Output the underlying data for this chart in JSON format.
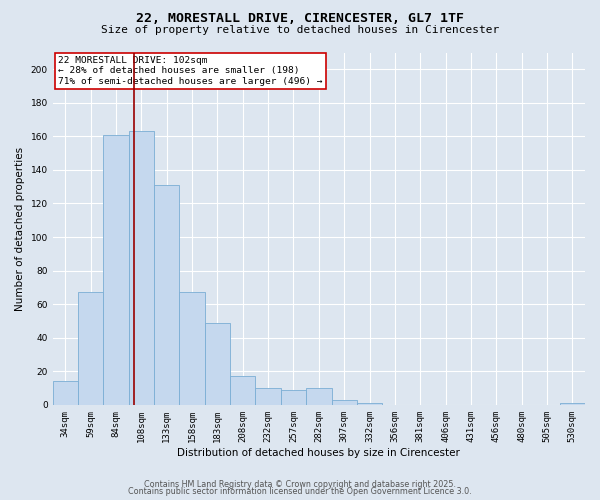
{
  "title_line1": "22, MORESTALL DRIVE, CIRENCESTER, GL7 1TF",
  "title_line2": "Size of property relative to detached houses in Cirencester",
  "xlabel": "Distribution of detached houses by size in Cirencester",
  "ylabel": "Number of detached properties",
  "categories": [
    "34sqm",
    "59sqm",
    "84sqm",
    "108sqm",
    "133sqm",
    "158sqm",
    "183sqm",
    "208sqm",
    "232sqm",
    "257sqm",
    "282sqm",
    "307sqm",
    "332sqm",
    "356sqm",
    "381sqm",
    "406sqm",
    "431sqm",
    "456sqm",
    "480sqm",
    "505sqm",
    "530sqm"
  ],
  "values": [
    14,
    67,
    161,
    163,
    131,
    67,
    49,
    17,
    10,
    9,
    10,
    3,
    1,
    0,
    0,
    0,
    0,
    0,
    0,
    0,
    1
  ],
  "bar_color": "#c5d8ee",
  "bar_edgecolor": "#7aadd4",
  "bar_width": 1.0,
  "vline_color": "#990000",
  "ylim": [
    0,
    210
  ],
  "yticks": [
    0,
    20,
    40,
    60,
    80,
    100,
    120,
    140,
    160,
    180,
    200
  ],
  "annotation_text": "22 MORESTALL DRIVE: 102sqm\n← 28% of detached houses are smaller (198)\n71% of semi-detached houses are larger (496) →",
  "annotation_box_facecolor": "#ffffff",
  "annotation_box_edgecolor": "#cc0000",
  "bg_color": "#dde6f0",
  "plot_bg_color": "#dde6f0",
  "footer_line1": "Contains HM Land Registry data © Crown copyright and database right 2025.",
  "footer_line2": "Contains public sector information licensed under the Open Government Licence 3.0.",
  "title_fontsize": 9.5,
  "subtitle_fontsize": 8.0,
  "tick_fontsize": 6.5,
  "label_fontsize": 7.5,
  "annotation_fontsize": 6.8,
  "footer_fontsize": 5.8
}
